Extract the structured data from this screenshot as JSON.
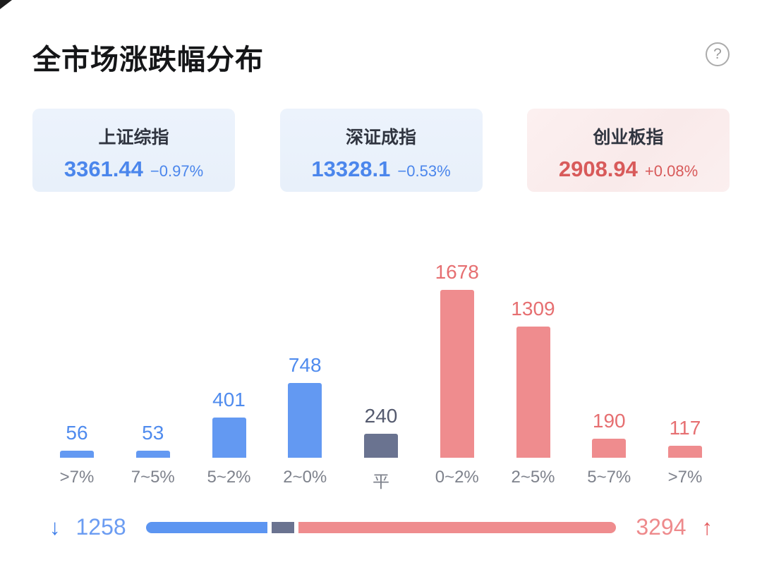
{
  "header": {
    "title": "全市场涨跌幅分布",
    "help_icon": "?"
  },
  "indices": [
    {
      "name": "上证综指",
      "value": "3361.44",
      "change": "−0.97%",
      "trend": "down"
    },
    {
      "name": "深证成指",
      "value": "13328.1",
      "change": "−0.53%",
      "trend": "down"
    },
    {
      "name": "创业板指",
      "value": "2908.94",
      "change": "+0.08%",
      "trend": "up"
    }
  ],
  "chart_data": {
    "type": "bar",
    "title": "全市场涨跌幅分布",
    "categories": [
      ">7%",
      "7~5%",
      "5~2%",
      "2~0%",
      "平",
      "0~2%",
      "2~5%",
      "5~7%",
      ">7%"
    ],
    "values": [
      56,
      53,
      401,
      748,
      240,
      1678,
      1309,
      190,
      117
    ],
    "roles": [
      "down",
      "down",
      "down",
      "down",
      "flat",
      "up",
      "up",
      "up",
      "up"
    ],
    "xlabel": "",
    "ylabel": "",
    "ylim": [
      0,
      1678
    ],
    "grid": false,
    "legend": false,
    "value_labels": true
  },
  "summary": {
    "down_count": 1258,
    "flat_count": 240,
    "up_count": 3294,
    "down_label": "1258",
    "up_label": "3294"
  },
  "icons": {
    "down_arrow": "↓",
    "up_arrow": "↑",
    "help": "?"
  },
  "colors": {
    "down_bar": "#6399F2",
    "down_text": "#4F8BEE",
    "flat_bar": "#6A7390",
    "flat_text": "#545A6E",
    "up_bar": "#EF8C8E",
    "up_text": "#E66F71",
    "card_blue_bg": "#EAF1FB",
    "card_red_bg": "#FAECEC"
  }
}
